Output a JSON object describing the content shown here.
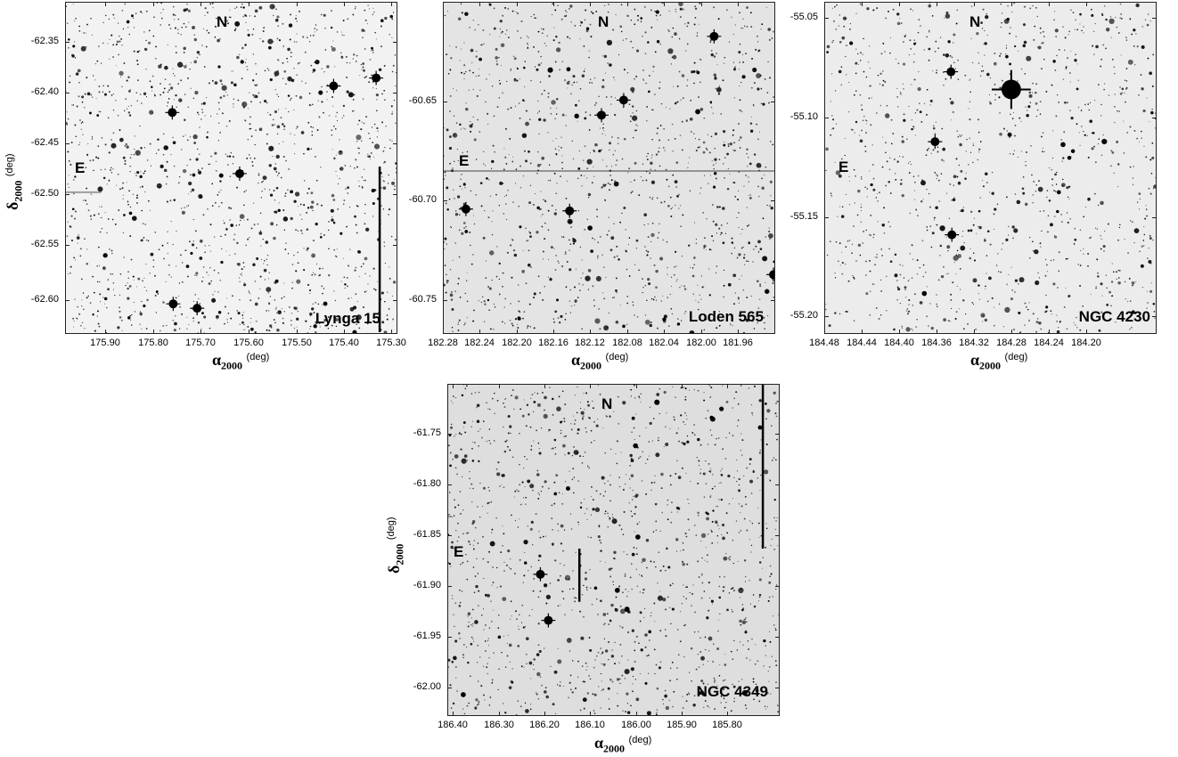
{
  "panels": [
    {
      "name": "Lynga 15",
      "north": "N",
      "east": "E",
      "background": "#f2f2f2",
      "yticks": [
        "-62.35",
        "-62.40",
        "-62.45",
        "-62.50",
        "-62.55",
        "-62.60"
      ],
      "xticks": [
        "175.90",
        "175.80",
        "175.70",
        "175.60",
        "175.50",
        "175.40",
        "175.30"
      ],
      "xlabel": {
        "symbol": "α",
        "sub": "2000",
        "unit": "(deg)"
      },
      "ylabel": {
        "symbol": "δ",
        "sub": "2000",
        "unit": "(deg)"
      }
    },
    {
      "name": "Loden 565",
      "north": "N",
      "east": "E",
      "background": "#e4e4e4",
      "yticks": [
        "-60.65",
        "-60.70",
        "-60.75"
      ],
      "xticks": [
        "182.28",
        "182.24",
        "182.20",
        "182.16",
        "182.12",
        "182.08",
        "182.04",
        "182.00",
        "181.96"
      ],
      "xlabel": {
        "symbol": "α",
        "sub": "2000",
        "unit": "(deg)"
      }
    },
    {
      "name": "NGC 4230",
      "north": "N",
      "east": "E",
      "background": "#ececec",
      "yticks": [
        "-55.05",
        "-55.10",
        "-55.15",
        "-55.20"
      ],
      "xticks": [
        "184.48",
        "184.44",
        "184.40",
        "184.36",
        "184.32",
        "184.28",
        "184.24",
        "184.20"
      ],
      "xlabel": {
        "symbol": "α",
        "sub": "2000",
        "unit": "(deg)"
      }
    },
    {
      "name": "NGC 4349",
      "north": "N",
      "east": "E",
      "background": "#dedede",
      "yticks": [
        "-61.75",
        "-61.80",
        "-61.85",
        "-61.90",
        "-61.95",
        "-62.00"
      ],
      "xticks": [
        "186.40",
        "186.30",
        "186.20",
        "186.10",
        "186.00",
        "185.90",
        "185.80"
      ],
      "xlabel": {
        "symbol": "α",
        "sub": "2000",
        "unit": "(deg)"
      },
      "ylabel": {
        "symbol": "δ",
        "sub": "2000",
        "unit": "(deg)"
      }
    }
  ]
}
